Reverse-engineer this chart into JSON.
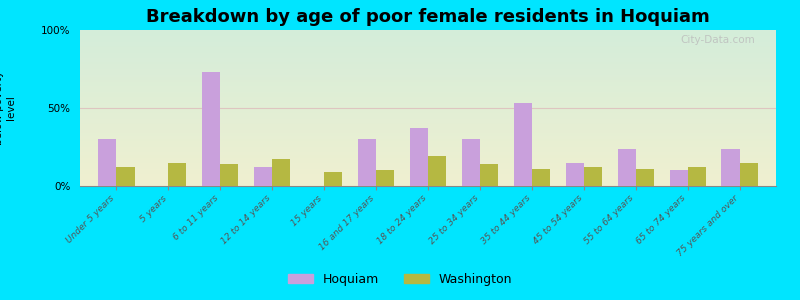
{
  "title": "Breakdown by age of poor female residents in Hoquiam",
  "categories": [
    "Under 5 years",
    "5 years",
    "6 to 11 years",
    "12 to 14 years",
    "15 years",
    "16 and 17 years",
    "18 to 24 years",
    "25 to 34 years",
    "35 to 44 years",
    "45 to 54 years",
    "55 to 64 years",
    "65 to 74 years",
    "75 years and over"
  ],
  "hoquiam": [
    30,
    0,
    73,
    12,
    0,
    30,
    37,
    30,
    53,
    15,
    24,
    10,
    24
  ],
  "washington": [
    12,
    15,
    14,
    17,
    9,
    10,
    19,
    14,
    11,
    12,
    11,
    12,
    15
  ],
  "hoquiam_color": "#c9a0dc",
  "washington_color": "#b5b842",
  "background_top": "#d4edda",
  "background_bottom": "#f0f0d0",
  "ylim": [
    0,
    100
  ],
  "yticks": [
    0,
    50,
    100
  ],
  "ytick_labels": [
    "0%",
    "50%",
    "100%"
  ],
  "title_fontsize": 13,
  "label_fontsize": 6.5,
  "ylabel_fontsize": 7.5,
  "bar_width": 0.35,
  "watermark": "City-Data.com",
  "legend_hoquiam": "Hoquiam",
  "legend_washington": "Washington",
  "fig_bg": "#00e5ff"
}
